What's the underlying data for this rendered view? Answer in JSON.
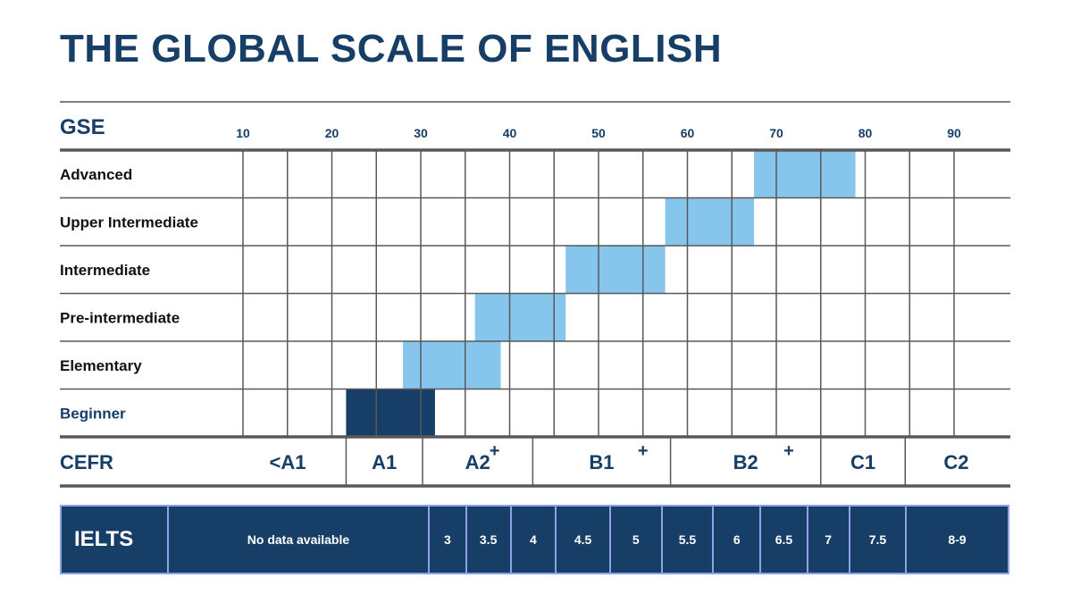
{
  "title": "THE GLOBAL SCALE OF ENGLISH",
  "chart_data": {
    "type": "bar",
    "scale_label": "GSE",
    "x_ticks": [
      10,
      20,
      30,
      40,
      50,
      60,
      70,
      80,
      90
    ],
    "xlim": [
      10,
      96
    ],
    "levels": [
      {
        "label": "Advanced",
        "range": [
          67.5,
          78.9
        ],
        "color": "#86c5ec"
      },
      {
        "label": "Upper Intermediate",
        "range": [
          57.5,
          67.5
        ],
        "color": "#86c5ec"
      },
      {
        "label": "Intermediate",
        "range": [
          46.3,
          57.5
        ],
        "color": "#86c5ec"
      },
      {
        "label": "Pre-intermediate",
        "range": [
          36.1,
          46.3
        ],
        "color": "#86c5ec"
      },
      {
        "label": "Elementary",
        "range": [
          28.0,
          39.0
        ],
        "color": "#86c5ec"
      },
      {
        "label": "Beginner",
        "range": [
          21.6,
          31.6
        ],
        "color": "#173e66"
      }
    ],
    "cefr": {
      "label": "CEFR",
      "bands": [
        {
          "label": "<A1",
          "range": [
            10,
            21.6
          ]
        },
        {
          "label": "A1",
          "range": [
            21.6,
            30.2
          ]
        },
        {
          "label": "A2",
          "range": [
            30.2,
            42.6
          ],
          "plus_at": 38.3
        },
        {
          "label": "B1",
          "range": [
            42.6,
            58.1
          ],
          "plus_at": 55.0
        },
        {
          "label": "B2",
          "range": [
            58.1,
            75.0
          ],
          "plus_at": 71.4
        },
        {
          "label": "C1",
          "range": [
            75.0,
            84.5
          ]
        },
        {
          "label": "C2",
          "range": [
            84.5,
            96
          ]
        }
      ],
      "plus_symbol": "+"
    },
    "ielts": {
      "label": "IELTS",
      "bands": [
        {
          "label": "No data available",
          "range": [
            10,
            30.8
          ]
        },
        {
          "label": "3",
          "range": [
            30.8,
            35.0
          ]
        },
        {
          "label": "3.5",
          "range": [
            35.0,
            40.0
          ]
        },
        {
          "label": "4",
          "range": [
            40.0,
            45.1
          ]
        },
        {
          "label": "4.5",
          "range": [
            45.1,
            51.2
          ]
        },
        {
          "label": "5",
          "range": [
            51.2,
            57.0
          ]
        },
        {
          "label": "5.5",
          "range": [
            57.0,
            62.8
          ]
        },
        {
          "label": "6",
          "range": [
            62.8,
            68.1
          ]
        },
        {
          "label": "6.5",
          "range": [
            68.1,
            73.4
          ]
        },
        {
          "label": "7",
          "range": [
            73.4,
            78.1
          ]
        },
        {
          "label": "7.5",
          "range": [
            78.1,
            84.5
          ]
        },
        {
          "label": "8-9",
          "range": [
            84.5,
            96
          ]
        }
      ]
    },
    "colors": {
      "navy": "#173e66",
      "light_blue": "#86c5ec",
      "grid": "#595959",
      "ielts_border": "#8fa2e8"
    }
  }
}
